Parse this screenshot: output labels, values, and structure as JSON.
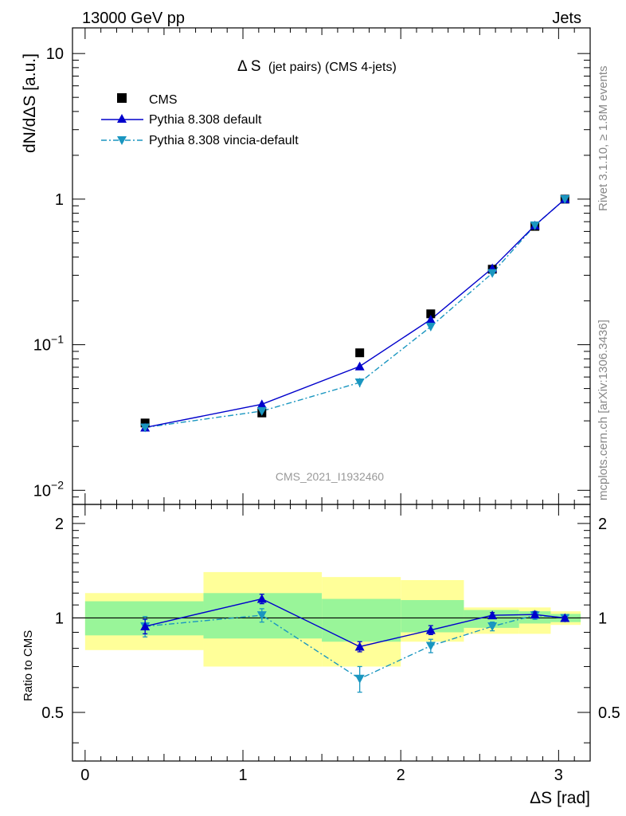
{
  "header": {
    "left": "13000 GeV pp",
    "right": "Jets"
  },
  "side": {
    "rivet": "Rivet 3.1.10, ≥ 1.8M events",
    "mcplots": "mcplots.cern.ch [arXiv:1306.3436]"
  },
  "chart_data": {
    "type": "line",
    "title_main": "Δ S",
    "title_sub": "(jet pairs) (CMS 4-jets)",
    "analysis_label": "CMS_2021_I1932460",
    "xlabel": "ΔS [rad]",
    "ylabel_top": "dN/dΔS [a.u.]",
    "ylabel_bottom": "Ratio to CMS",
    "xlim": [
      -0.08,
      3.2
    ],
    "ylim_top": [
      0.008,
      15
    ],
    "yscale_top": "log",
    "ylim_bottom": [
      0.35,
      2.3
    ],
    "yscale_bottom": "log",
    "x_ticks": [
      "0",
      "1",
      "2",
      "3"
    ],
    "y_ticks_top": [
      "10",
      "1",
      "10^-1",
      "10^-2"
    ],
    "y_ticks_bottom": [
      "2",
      "1",
      "0.5"
    ],
    "legend_position": "top-left",
    "legend": [
      {
        "name": "CMS",
        "style": "data"
      },
      {
        "name": "Pythia 8.308 default",
        "style": "solid-up"
      },
      {
        "name": "Pythia 8.308 vincia-default",
        "style": "dashdot-down"
      }
    ],
    "colors": {
      "data": "#000000",
      "default": "#0000cc",
      "vincia": "#1a96c0",
      "band_inner": "#99f599",
      "band_outer": "#ffff99"
    },
    "bins": [
      {
        "lo": 0.0,
        "hi": 0.75
      },
      {
        "lo": 0.75,
        "hi": 1.5
      },
      {
        "lo": 1.5,
        "hi": 2.0
      },
      {
        "lo": 2.0,
        "hi": 2.4
      },
      {
        "lo": 2.4,
        "hi": 2.75
      },
      {
        "lo": 2.75,
        "hi": 2.95
      },
      {
        "lo": 2.95,
        "hi": 3.14
      }
    ],
    "x": [
      0.38,
      1.12,
      1.74,
      2.19,
      2.58,
      2.85,
      3.04
    ],
    "series": [
      {
        "name": "CMS",
        "values": [
          0.029,
          0.034,
          0.088,
          0.163,
          0.33,
          0.65,
          1.0
        ]
      },
      {
        "name": "Pythia 8.308 default",
        "values": [
          0.027,
          0.039,
          0.071,
          0.149,
          0.335,
          0.66,
          1.0
        ]
      },
      {
        "name": "Pythia 8.308 vincia-default",
        "values": [
          0.027,
          0.035,
          0.055,
          0.133,
          0.31,
          0.66,
          1.0
        ]
      }
    ],
    "mc_errors": [
      {
        "name": "Pythia 8.308 default",
        "values": [
          0.0015,
          0.0012,
          0.002,
          0.003,
          0.005,
          0.006,
          0.0
        ]
      },
      {
        "name": "Pythia 8.308 vincia-default",
        "values": [
          0.0018,
          0.0015,
          0.004,
          0.006,
          0.008,
          0.01,
          0.0
        ]
      }
    ],
    "ratio": [
      {
        "name": "Pythia 8.308 default",
        "values": [
          0.94,
          1.15,
          0.81,
          0.915,
          1.02,
          1.025,
          1.0
        ],
        "errors": [
          0.05,
          0.04,
          0.03,
          0.03,
          0.02,
          0.02,
          0.01
        ]
      },
      {
        "name": "Pythia 8.308 vincia-default",
        "values": [
          0.94,
          1.02,
          0.64,
          0.815,
          0.94,
          1.02,
          1.0
        ],
        "errors": [
          0.07,
          0.05,
          0.06,
          0.04,
          0.03,
          0.03,
          0.01
        ]
      }
    ],
    "band_inner": [
      [
        0.88,
        1.13
      ],
      [
        0.86,
        1.2
      ],
      [
        0.84,
        1.15
      ],
      [
        0.9,
        1.14
      ],
      [
        0.93,
        1.06
      ],
      [
        0.96,
        1.05
      ],
      [
        0.97,
        1.03
      ]
    ],
    "band_outer": [
      [
        0.79,
        1.2
      ],
      [
        0.7,
        1.4
      ],
      [
        0.7,
        1.35
      ],
      [
        0.84,
        1.32
      ],
      [
        0.89,
        1.08
      ],
      [
        0.89,
        1.08
      ],
      [
        0.95,
        1.05
      ]
    ]
  }
}
